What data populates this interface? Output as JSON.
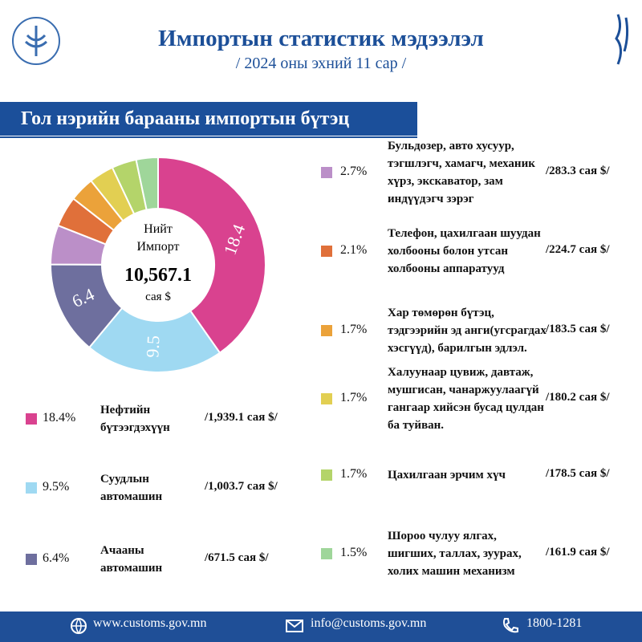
{
  "header": {
    "title": "Импортын статистик мэдээлэл",
    "subtitle": "/ 2024 оны эхний 11 сар /"
  },
  "section_title": "Гол нэрийн барааны импортын бүтэц",
  "chart_data": {
    "type": "donut",
    "center_lines": [
      "Нийт",
      "Импорт"
    ],
    "center_value": "10,567.1",
    "center_unit": "сая $",
    "categories": [
      "Нефтийн бүтээгдэхүүн",
      "Суудлын автомашин",
      "Ачааны автомашин",
      "Бульдозер, авто хусуур, тэгшлэгч, хамагч, механик хүрз, экскаватор, зам индүүдэгч зэрэг",
      "Телефон, цахилгаан шуудан холбооны болон утсан холбооны аппаратууд",
      "Хар төмөрөн бүтэц, тэдгээрийн эд анги(угсрагдах хэсгүүд), барилгын эдлэл.",
      "Халуунаар цувиж, давтаж, мушгисан, чанаржуулаагүй гангаар хийсэн бусад цулдан ба туйван.",
      "Цахилгаан эрчим хүч",
      "Шороо чулуу ялгах, шигших, таллах, зуурах, холих машин механизм"
    ],
    "values": [
      18.4,
      9.5,
      6.4,
      2.7,
      2.1,
      1.7,
      1.7,
      1.7,
      1.5
    ],
    "value_labels": [
      "18.4%",
      "9.5%",
      "6.4%",
      "2.7%",
      "2.1%",
      "1.7%",
      "1.7%",
      "1.7%",
      "1.5%"
    ],
    "amounts": [
      "/1,939.1 сая $/",
      "/1,003.7 сая $/",
      "/671.5 сая $/",
      "/283.3 сая $/",
      "/224.7 сая $/",
      "/183.5 сая $/",
      "/180.2 сая $/",
      "/178.5 сая $/",
      "/161.9 сая $/"
    ],
    "colors": [
      "#d9428f",
      "#9fd9f2",
      "#6e6f9e",
      "#bb8fc8",
      "#e0703a",
      "#eba23a",
      "#e2cf52",
      "#b4d46a",
      "#9fd69a"
    ]
  },
  "footer": {
    "website": "www.customs.gov.mn",
    "email": "info@customs.gov.mn",
    "phone": "1800-1281"
  }
}
